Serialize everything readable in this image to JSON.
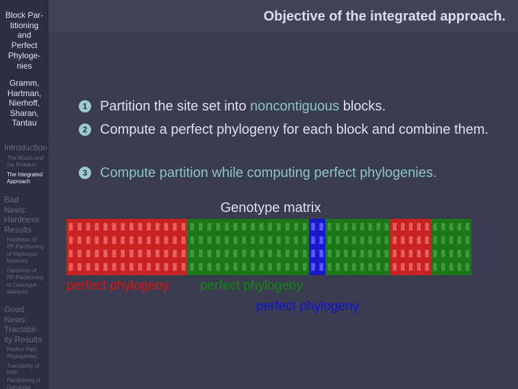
{
  "sidebar": {
    "title_lines": [
      "Block Par-",
      "titioning",
      "and",
      "Perfect",
      "Phyloge-",
      "nies"
    ],
    "author_lines": [
      "Gramm,",
      "Hartman,",
      "Nierhoff,",
      "Sharan,",
      "Tantau"
    ],
    "sections": [
      {
        "lines": [
          "Introduction"
        ],
        "subsections": [
          {
            "lines": [
              "The Model and",
              "the Problem"
            ]
          },
          {
            "lines": [
              "The Integrated",
              "Approach"
            ]
          }
        ]
      },
      {
        "lines": [
          "Bad",
          "News:",
          "Hardness",
          "Results"
        ],
        "subsections": [
          {
            "lines": [
              "Hardness of",
              "PP-Partitioning",
              "of Haplotype",
              "Matrices"
            ]
          },
          {
            "lines": [
              "Hardness of",
              "PP-Partitioning",
              "of Genotype",
              "Matrices"
            ]
          }
        ]
      },
      {
        "lines": [
          "Good",
          "News:",
          "Tractabil-",
          "ity Results"
        ],
        "subsections": [
          {
            "lines": [
              "Perfect Path",
              "Phylogenies"
            ]
          },
          {
            "lines": [
              "Tractability of",
              "PPP-",
              "Partitioning of",
              "Genotype"
            ]
          }
        ]
      }
    ]
  },
  "header": {
    "title": "Objective of the integrated approach."
  },
  "items": [
    {
      "number": "1",
      "parts": [
        "Partition the site set into ",
        "noncontiguous",
        " blocks."
      ]
    },
    {
      "number": "2",
      "parts": [
        "Compute a perfect phylogeny for each block and combine them."
      ]
    },
    {
      "number": "3",
      "parts": [
        "Compute partition while computing perfect phylogenies."
      ]
    }
  ],
  "figure": {
    "caption": "Genotype matrix",
    "labels": [
      "perfect phylogeny",
      "perfect phylogeny",
      "perfect phylogeny"
    ]
  }
}
